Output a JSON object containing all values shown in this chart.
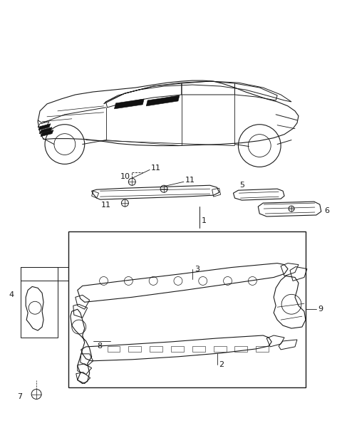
{
  "bg_color": "#ffffff",
  "line_color": "#1a1a1a",
  "fig_width": 4.8,
  "fig_height": 6.01,
  "dpi": 100
}
